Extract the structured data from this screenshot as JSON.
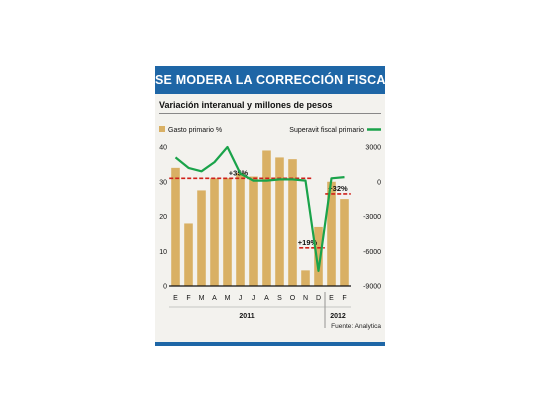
{
  "chart_data": {
    "type": "bar",
    "title": "SE MODERA LA CORRECCIÓN FISCAL",
    "subtitle": "Variación interanual y millones de pesos",
    "categories": [
      "E",
      "F",
      "M",
      "A",
      "M",
      "J",
      "J",
      "A",
      "S",
      "O",
      "N",
      "D",
      "E",
      "F"
    ],
    "year_labels": [
      {
        "label": "2011",
        "from": 0,
        "to": 11
      },
      {
        "label": "2012",
        "from": 12,
        "to": 13
      }
    ],
    "series": [
      {
        "name": "Gasto primario %",
        "type": "bar",
        "axis": "left",
        "color": "#d9b064",
        "values": [
          34,
          18,
          27.5,
          31,
          31,
          32.5,
          31.5,
          39,
          37,
          36.5,
          4.5,
          17,
          30,
          25
        ]
      },
      {
        "name": "Superavit fiscal primario",
        "type": "line",
        "axis": "right",
        "color": "#1aa34a",
        "values": [
          2100,
          1200,
          900,
          1700,
          3000,
          700,
          100,
          100,
          200,
          200,
          100,
          -7700,
          300,
          400
        ]
      }
    ],
    "left_axis": {
      "ylim": [
        0,
        40
      ],
      "ticks": [
        "0",
        "10",
        "20",
        "30",
        "40"
      ]
    },
    "right_axis": {
      "ylim": [
        -9000,
        3000
      ],
      "ticks": [
        "3000",
        "0",
        "-3000",
        "-6000",
        "-9000"
      ]
    },
    "annotations": [
      {
        "label": "+35%",
        "color": "#d0201a",
        "from": 0,
        "to": 10,
        "level": 31
      },
      {
        "label": "+19%",
        "color": "#d0201a",
        "from": 10,
        "to": 11,
        "level": 11
      },
      {
        "label": "+32%",
        "color": "#d0201a",
        "from": 12,
        "to": 13,
        "level": 26.5
      }
    ],
    "grid": false,
    "legend": "top"
  },
  "source": "Fuente: Analytica"
}
